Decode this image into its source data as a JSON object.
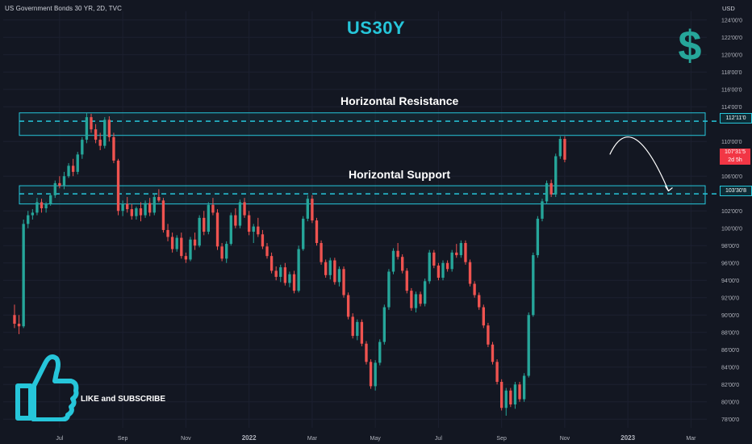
{
  "symbol_title": "US Government Bonds 30 YR, 2D, TVC",
  "headline": "US30Y",
  "currency_unit": "USD",
  "icons": {
    "currency": "dollar-icon",
    "cta": "thumbs-up-icon"
  },
  "resistance_label": "Horizontal Resistance",
  "support_label": "Horizontal Support",
  "resistance_price": "112'11'0",
  "support_price": "103'30'8",
  "last_price": "107'31'5",
  "last_countdown": "2d 5h",
  "cta_text": "LIKE and SUBSCRIBE",
  "colors": {
    "background": "#131722",
    "up": "#26a69a",
    "down": "#ef5350",
    "accent": "#26c6da",
    "text": "#d1d4dc",
    "last_price_tag": "#f23645"
  },
  "chart_data": {
    "type": "candlestick",
    "title": "US Government Bonds 30 YR, 2D, TVC",
    "y_tick_labels": [
      "124'00'0",
      "122'00'0",
      "120'00'0",
      "118'00'0",
      "116'00'0",
      "114'00'0",
      "110'00'0",
      "106'00'0",
      "102'00'0",
      "100'00'0",
      "98'00'0",
      "96'00'0",
      "94'00'0",
      "92'00'0",
      "90'00'0",
      "88'00'0",
      "86'00'0",
      "84'00'0",
      "82'00'0",
      "80'00'0",
      "78'00'0"
    ],
    "y_tick_values": [
      124,
      122,
      120,
      118,
      116,
      114,
      110,
      106,
      102,
      100,
      98,
      96,
      94,
      92,
      90,
      88,
      86,
      84,
      82,
      80,
      78
    ],
    "ylim": [
      77,
      125
    ],
    "x_tick_labels": [
      "Jul",
      "Sep",
      "Nov",
      "2022",
      "Mar",
      "May",
      "Jul",
      "Sep",
      "Nov",
      "2023",
      "Mar"
    ],
    "x_tick_index": [
      12,
      26,
      40,
      54,
      68,
      82,
      96,
      110,
      124,
      138,
      152
    ],
    "x_total_bars": 156,
    "resistance": {
      "price": 112.34,
      "zone": [
        110.7,
        113.3
      ]
    },
    "support": {
      "price": 103.96,
      "zone": [
        102.8,
        104.9
      ]
    },
    "projection": {
      "from_index": 134,
      "from_price": 108.5,
      "peak_index": 139,
      "peak_price": 112.2,
      "to_index": 147,
      "to_price": 104.3
    },
    "candles": [
      [
        90,
        91.2,
        88.5,
        89
      ],
      [
        89,
        90,
        87.8,
        88.7
      ],
      [
        88.7,
        101,
        88.5,
        100.5
      ],
      [
        100.5,
        102,
        100,
        101.5
      ],
      [
        101.5,
        102.2,
        101,
        101.8
      ],
      [
        101.8,
        103.5,
        101.5,
        103
      ],
      [
        103,
        103.4,
        101.8,
        102.3
      ],
      [
        102.3,
        103,
        101.8,
        102.8
      ],
      [
        102.8,
        104,
        102.6,
        103.8
      ],
      [
        103.8,
        105.5,
        103.5,
        105.2
      ],
      [
        105.2,
        106,
        104.6,
        104.9
      ],
      [
        104.9,
        106.5,
        104.5,
        106
      ],
      [
        106,
        107.5,
        105.8,
        107.2
      ],
      [
        107.2,
        108,
        106,
        106.5
      ],
      [
        106.5,
        108.8,
        106.2,
        108.5
      ],
      [
        108.5,
        110.5,
        108,
        110.2
      ],
      [
        110.2,
        113.3,
        109.8,
        112.8
      ],
      [
        112.8,
        113.2,
        111,
        111.4
      ],
      [
        111.4,
        112,
        109.8,
        110.2
      ],
      [
        110.2,
        111,
        109,
        109.5
      ],
      [
        109.5,
        112.8,
        109.2,
        112.5
      ],
      [
        112.5,
        112.9,
        110,
        110.5
      ],
      [
        110.5,
        111,
        107.5,
        107.8
      ],
      [
        107.8,
        108,
        101.5,
        102
      ],
      [
        102,
        103.2,
        101.4,
        102.8
      ],
      [
        102.8,
        103.6,
        101.8,
        102.2
      ],
      [
        102.2,
        102.8,
        101,
        101.4
      ],
      [
        101.4,
        102.5,
        101,
        102.3
      ],
      [
        102.3,
        103,
        100.8,
        101.5
      ],
      [
        101.5,
        103.2,
        101.2,
        102.9
      ],
      [
        102.9,
        103.5,
        101.4,
        101.8
      ],
      [
        101.8,
        104,
        101.5,
        103.6
      ],
      [
        103.6,
        104.5,
        103,
        103.2
      ],
      [
        103.2,
        103.5,
        99.5,
        99.8
      ],
      [
        99.8,
        100.5,
        98.5,
        99
      ],
      [
        99,
        99.5,
        97.2,
        97.6
      ],
      [
        97.6,
        99.2,
        97.3,
        98.9
      ],
      [
        98.9,
        99.5,
        96.5,
        96.8
      ],
      [
        96.8,
        97.2,
        96,
        96.4
      ],
      [
        96.4,
        99,
        96.2,
        98.7
      ],
      [
        98.7,
        99.5,
        97.5,
        98
      ],
      [
        98,
        101.5,
        97.8,
        101.2
      ],
      [
        101.2,
        102,
        99.2,
        99.6
      ],
      [
        99.6,
        103,
        99.3,
        102.7
      ],
      [
        102.7,
        103.5,
        101.5,
        101.8
      ],
      [
        101.8,
        102.2,
        97.5,
        97.9
      ],
      [
        97.9,
        98.3,
        96.2,
        96.5
      ],
      [
        96.5,
        98.5,
        96,
        98.2
      ],
      [
        98.2,
        101.8,
        98,
        101.5
      ],
      [
        101.5,
        102.3,
        100,
        100.3
      ],
      [
        100.3,
        103.3,
        100,
        103
      ],
      [
        103,
        103.5,
        101.2,
        101.5
      ],
      [
        101.5,
        102,
        99.2,
        99.6
      ],
      [
        99.6,
        100.5,
        98.3,
        100.2
      ],
      [
        100.2,
        101.2,
        99,
        99.3
      ],
      [
        99.3,
        99.8,
        97.6,
        97.9
      ],
      [
        97.9,
        98.3,
        96.5,
        96.8
      ],
      [
        96.8,
        97.2,
        94.8,
        95.1
      ],
      [
        95.1,
        95.6,
        94,
        94.4
      ],
      [
        94.4,
        95.8,
        93.8,
        95.5
      ],
      [
        95.5,
        96,
        93.4,
        93.7
      ],
      [
        93.7,
        95,
        93.2,
        94.7
      ],
      [
        94.7,
        95.1,
        92.5,
        92.8
      ],
      [
        92.8,
        98,
        92.6,
        97.6
      ],
      [
        97.6,
        101.4,
        97.4,
        101.1
      ],
      [
        101.1,
        103.8,
        100.8,
        103.4
      ],
      [
        103.4,
        103.8,
        100.6,
        100.9
      ],
      [
        100.9,
        101.2,
        98,
        98.3
      ],
      [
        98.3,
        98.6,
        95.8,
        96.1
      ],
      [
        96.1,
        96.4,
        94.3,
        94.6
      ],
      [
        94.6,
        96.6,
        94.1,
        96.3
      ],
      [
        96.3,
        96.6,
        93.5,
        93.8
      ],
      [
        93.8,
        95.6,
        93.3,
        95.3
      ],
      [
        95.3,
        95.6,
        92,
        92.3
      ],
      [
        92.3,
        92.6,
        89.5,
        89.8
      ],
      [
        89.8,
        90.2,
        87.3,
        87.6
      ],
      [
        87.6,
        89.5,
        87.1,
        89.2
      ],
      [
        89.2,
        89.5,
        86.4,
        86.7
      ],
      [
        86.7,
        87,
        84.3,
        84.6
      ],
      [
        84.6,
        84.9,
        81.5,
        81.8
      ],
      [
        81.8,
        84.8,
        81.3,
        84.5
      ],
      [
        84.5,
        87.2,
        84.2,
        86.9
      ],
      [
        86.9,
        91.2,
        86.6,
        90.9
      ],
      [
        90.9,
        95.3,
        90.6,
        95
      ],
      [
        95,
        97.7,
        94.7,
        97.4
      ],
      [
        97.4,
        98.3,
        96.4,
        96.7
      ],
      [
        96.7,
        97,
        94.8,
        95.1
      ],
      [
        95.1,
        95.4,
        92.5,
        92.8
      ],
      [
        92.8,
        93.1,
        90.5,
        90.8
      ],
      [
        90.8,
        92.7,
        90.3,
        92.4
      ],
      [
        92.4,
        92.7,
        91,
        91.3
      ],
      [
        91.3,
        94.2,
        91,
        93.9
      ],
      [
        93.9,
        97.5,
        93.6,
        97.2
      ],
      [
        97.2,
        97.5,
        95.4,
        95.7
      ],
      [
        95.7,
        96,
        94,
        94.3
      ],
      [
        94.3,
        96.3,
        94,
        96
      ],
      [
        96,
        96.3,
        95,
        95.3
      ],
      [
        95.3,
        97.5,
        95,
        97.2
      ],
      [
        97.2,
        98.2,
        96.6,
        96.9
      ],
      [
        96.9,
        98.6,
        96.6,
        98.3
      ],
      [
        98.3,
        98.6,
        95.8,
        96.1
      ],
      [
        96.1,
        96.4,
        93.3,
        93.6
      ],
      [
        93.6,
        93.9,
        92,
        92.3
      ],
      [
        92.3,
        92.6,
        90.6,
        90.9
      ],
      [
        90.9,
        91.2,
        88.5,
        88.8
      ],
      [
        88.8,
        89.1,
        86.3,
        86.6
      ],
      [
        86.6,
        86.9,
        84.3,
        84.6
      ],
      [
        84.6,
        84.9,
        82,
        82.3
      ],
      [
        82.3,
        82.6,
        79,
        79.3
      ],
      [
        79.3,
        81.6,
        78.4,
        81.3
      ],
      [
        81.3,
        81.6,
        79.4,
        79.7
      ],
      [
        79.7,
        82.3,
        79.2,
        82
      ],
      [
        82,
        82.3,
        80,
        80.3
      ],
      [
        80.3,
        83.3,
        80,
        83
      ],
      [
        83,
        90.3,
        82.8,
        90
      ],
      [
        90,
        97.2,
        89.8,
        96.9
      ],
      [
        96.9,
        101.4,
        96.6,
        101.1
      ],
      [
        101.1,
        103.4,
        100.8,
        103.1
      ],
      [
        103.1,
        105.5,
        102.8,
        105.2
      ],
      [
        105.2,
        105.6,
        103.6,
        103.9
      ],
      [
        103.9,
        108.6,
        103.6,
        108.3
      ],
      [
        108.3,
        110.6,
        108,
        110.3
      ],
      [
        110.3,
        110.6,
        107.6,
        107.9
      ]
    ],
    "candle_start_index": 2,
    "candle_spacing_ratio": 1.0
  }
}
